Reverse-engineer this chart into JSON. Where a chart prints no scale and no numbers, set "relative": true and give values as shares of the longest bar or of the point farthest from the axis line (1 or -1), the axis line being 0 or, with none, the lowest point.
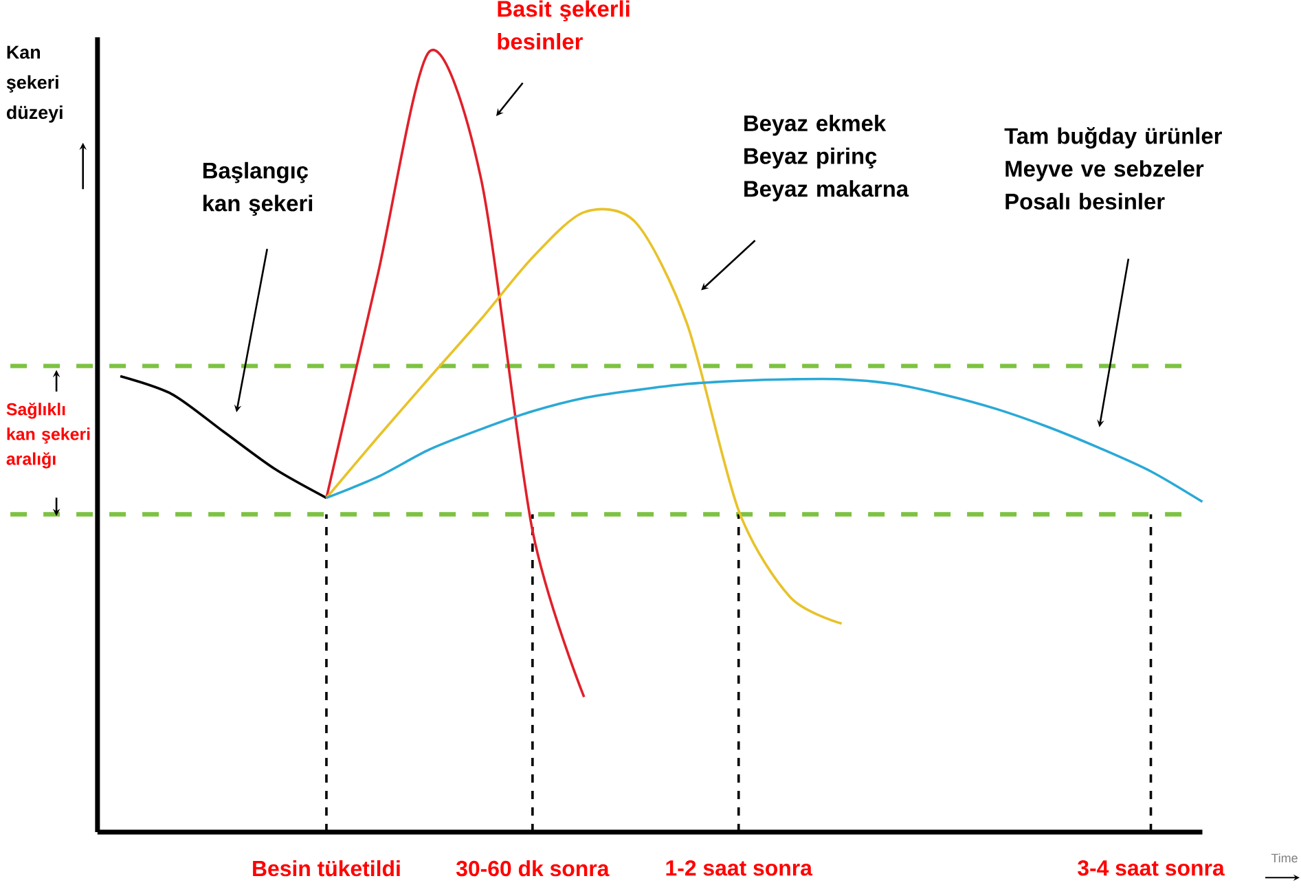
{
  "chart_data": {
    "type": "line",
    "relative": true,
    "ylabel": "Kan şekeri düzeyi",
    "xlabel": "Time",
    "categories": [
      null,
      null,
      null,
      null,
      "Besin tüketildi",
      null,
      null,
      null,
      "30-60 dk sonra",
      null,
      null,
      null,
      "1-2 saat sonra",
      null,
      null,
      null,
      null,
      null,
      null,
      null,
      "3-4 saat sonra",
      null
    ],
    "series": [
      {
        "color": "#000000",
        "values": [
          0.584,
          0.561,
          0.513,
          0.465,
          0.428,
          null,
          null,
          null,
          null,
          null,
          null,
          null,
          null,
          null,
          null,
          null,
          null,
          null,
          null,
          null,
          null,
          null
        ]
      },
      {
        "color": "#e0202a",
        "values": [
          null,
          null,
          null,
          null,
          0.428,
          0.715,
          1.0,
          0.837,
          0.386,
          0.173,
          null,
          null,
          null,
          null,
          null,
          null,
          null,
          null,
          null,
          null,
          null,
          null
        ]
      },
      {
        "color": "#e8c229",
        "values": [
          null,
          null,
          null,
          null,
          0.428,
          0.506,
          0.582,
          0.657,
          0.736,
          0.794,
          0.781,
          0.651,
          0.412,
          0.301,
          0.267,
          null,
          null,
          null,
          null,
          null,
          null,
          null
        ]
      },
      {
        "color": "#2aa9d6",
        "values": [
          null,
          null,
          null,
          null,
          0.428,
          0.455,
          0.49,
          0.516,
          0.539,
          0.556,
          0.566,
          0.574,
          0.578,
          0.58,
          0.58,
          0.574,
          0.56,
          0.542,
          0.519,
          0.492,
          0.462,
          0.423
        ]
      }
    ],
    "marker": "none",
    "line_style": "solid",
    "ref_lines": [
      {
        "axis": "y",
        "value": 0.597,
        "color": "#7dc242",
        "line_style": "dashed"
      },
      {
        "axis": "y",
        "value": 0.407,
        "color": "#7dc242",
        "line_style": "dashed"
      },
      {
        "axis": "x",
        "value": "Besin tüketildi",
        "color": "#000000",
        "line_style": "dashed"
      },
      {
        "axis": "x",
        "value": "30-60 dk sonra",
        "color": "#000000",
        "line_style": "dashed"
      },
      {
        "axis": "x",
        "value": "1-2 saat sonra",
        "color": "#000000",
        "line_style": "dashed"
      },
      {
        "axis": "x",
        "value": "3-4 saat sonra",
        "color": "#000000",
        "line_style": "dashed"
      }
    ],
    "annotations": [
      "Başlangıç kan şekeri",
      "Basit şekerli besinler",
      "Beyaz ekmek Beyaz pirinç Beyaz makarna",
      "Tam buğday ürünler Meyve ve sebzeler Posalı besinler",
      "Sağlıklı kan şekeri aralığı"
    ]
  }
}
